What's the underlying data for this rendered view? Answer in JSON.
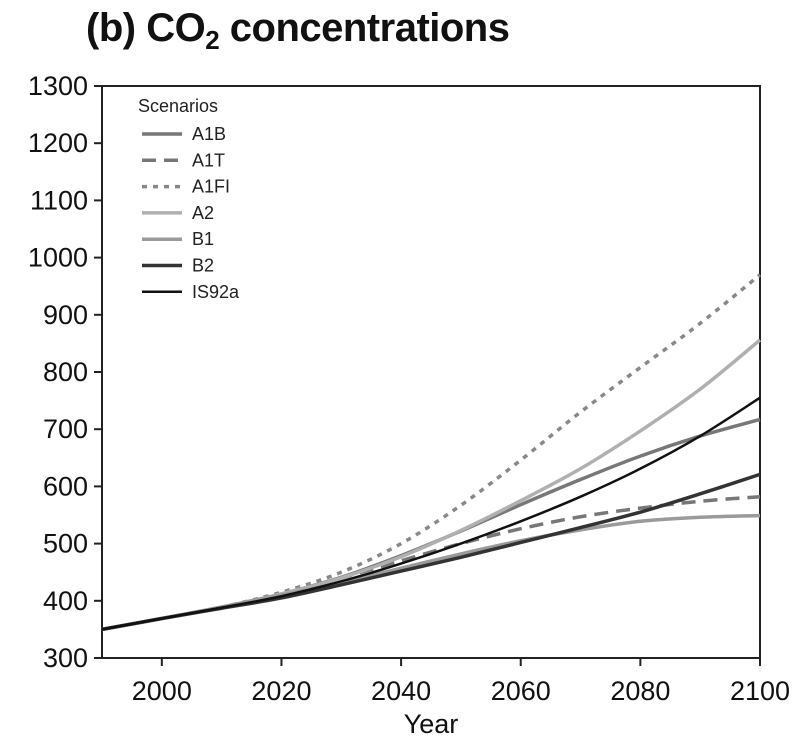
{
  "title": {
    "prefix": "(b) CO",
    "subscript": "2",
    "suffix": " concentrations"
  },
  "chart_data": {
    "type": "line",
    "xlabel": "Year",
    "ylabel": "",
    "xlim": [
      1990,
      2100
    ],
    "ylim": [
      300,
      1300
    ],
    "xticks": [
      2000,
      2020,
      2040,
      2060,
      2080,
      2100
    ],
    "yticks": [
      300,
      400,
      500,
      600,
      700,
      800,
      900,
      1000,
      1100,
      1200,
      1300
    ],
    "grid": false,
    "legend": {
      "title": "Scenarios",
      "placement": "top-left"
    },
    "x": [
      1990,
      2000,
      2010,
      2020,
      2030,
      2040,
      2050,
      2060,
      2070,
      2080,
      2090,
      2100
    ],
    "series": [
      {
        "name": "A1B",
        "color": "#777777",
        "style": "solid",
        "values": [
          350,
          369,
          389,
          412,
          441,
          479,
          522,
          568,
          612,
          653,
          688,
          717
        ]
      },
      {
        "name": "A1T",
        "color": "#777777",
        "style": "dashed",
        "values": [
          350,
          369,
          389,
          411,
          440,
          470,
          500,
          526,
          547,
          562,
          574,
          582
        ]
      },
      {
        "name": "A1FI",
        "color": "#888888",
        "style": "dotted",
        "values": [
          350,
          369,
          389,
          415,
          450,
          500,
          567,
          646,
          730,
          808,
          885,
          970
        ]
      },
      {
        "name": "A2",
        "color": "#b0b0b0",
        "style": "solid",
        "values": [
          350,
          369,
          389,
          412,
          440,
          477,
          523,
          575,
          631,
          697,
          770,
          856
        ]
      },
      {
        "name": "B1",
        "color": "#9a9a9a",
        "style": "solid",
        "values": [
          350,
          369,
          389,
          410,
          432,
          457,
          482,
          505,
          524,
          539,
          546,
          549
        ]
      },
      {
        "name": "B2",
        "color": "#333333",
        "style": "solid",
        "values": [
          350,
          369,
          387,
          405,
          428,
          452,
          476,
          502,
          528,
          555,
          587,
          621
        ]
      },
      {
        "name": "IS92a",
        "color": "#111111",
        "style": "solid",
        "values": [
          350,
          369,
          388,
          408,
          434,
          465,
          500,
          539,
          582,
          631,
          688,
          755
        ]
      }
    ]
  }
}
